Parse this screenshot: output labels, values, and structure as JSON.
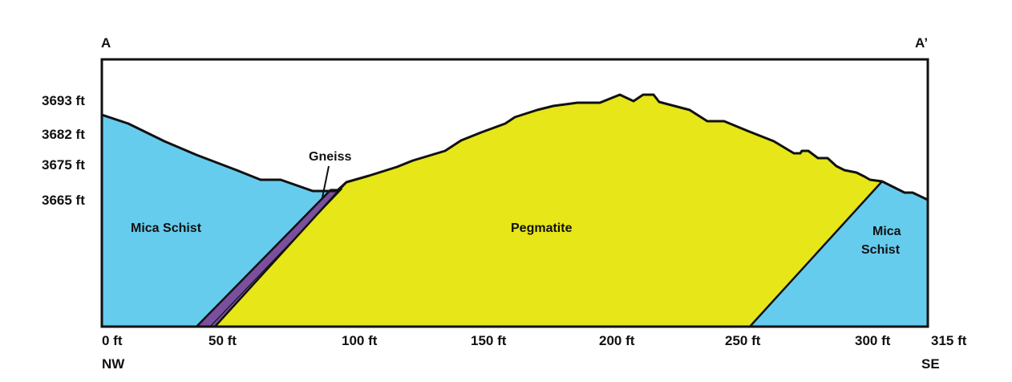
{
  "section": {
    "start_label": "A",
    "end_label": "A’",
    "start_direction": "NW",
    "end_direction": "SE"
  },
  "elevation_labels": [
    "3693 ft",
    "3682 ft",
    "3675 ft",
    "3665 ft"
  ],
  "distance_labels": [
    "0 ft",
    "50 ft",
    "100 ft",
    "150 ft",
    "200 ft",
    "250 ft",
    "300 ft",
    "315 ft"
  ],
  "units": {
    "left_mica_schist": "Mica Schist",
    "gneiss": "Gneiss",
    "pegmatite": "Pegmatite",
    "right_mica_schist": [
      "Mica",
      "Schist"
    ]
  },
  "colors": {
    "mica_schist": "#66ccee",
    "gneiss": "#7a4f9e",
    "pegmatite": "#e6e619",
    "outline": "#111111"
  }
}
